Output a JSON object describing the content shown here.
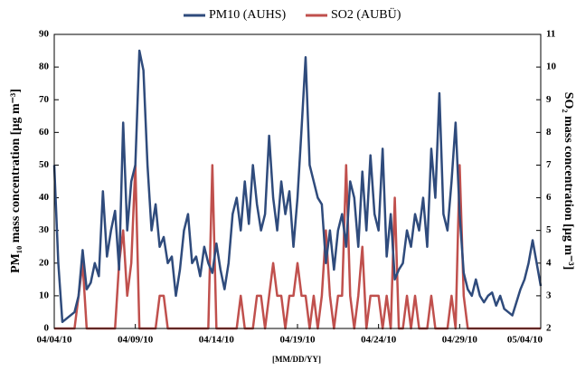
{
  "chart_data": {
    "type": "line",
    "x_label": "[MM/DD/YY]",
    "y_label": "PM₁₀ mass concentration [µg m⁻³]",
    "y2_label": "SO₂ mass concentration [µg m⁻³]",
    "xlim": [
      0,
      30
    ],
    "xticks": [
      {
        "value": 0,
        "label": "04/04/10"
      },
      {
        "value": 5,
        "label": "04/09/10"
      },
      {
        "value": 10,
        "label": "04/14/10"
      },
      {
        "value": 15,
        "label": "04/19/10"
      },
      {
        "value": 20,
        "label": "04/24/10"
      },
      {
        "value": 25,
        "label": "04/29/10"
      },
      {
        "value": 30,
        "label": "05/04/10"
      }
    ],
    "ylim": [
      0,
      90
    ],
    "yticks": [
      0,
      10,
      20,
      30,
      40,
      50,
      60,
      70,
      80,
      90
    ],
    "y2lim": [
      2,
      11
    ],
    "y2ticks": [
      2,
      3,
      4,
      5,
      6,
      7,
      8,
      9,
      10,
      11
    ],
    "x": [
      0,
      0.25,
      0.5,
      0.75,
      1,
      1.25,
      1.5,
      1.75,
      2,
      2.25,
      2.5,
      2.75,
      3,
      3.25,
      3.5,
      3.75,
      4,
      4.25,
      4.5,
      4.75,
      5,
      5.25,
      5.5,
      5.75,
      6,
      6.25,
      6.5,
      6.75,
      7,
      7.25,
      7.5,
      7.75,
      8,
      8.25,
      8.5,
      8.75,
      9,
      9.25,
      9.5,
      9.75,
      10,
      10.25,
      10.5,
      10.75,
      11,
      11.25,
      11.5,
      11.75,
      12,
      12.25,
      12.5,
      12.75,
      13,
      13.25,
      13.5,
      13.75,
      14,
      14.25,
      14.5,
      14.75,
      15,
      15.25,
      15.5,
      15.75,
      16,
      16.25,
      16.5,
      16.75,
      17,
      17.25,
      17.5,
      17.75,
      18,
      18.25,
      18.5,
      18.75,
      19,
      19.25,
      19.5,
      19.75,
      20,
      20.25,
      20.5,
      20.75,
      21,
      21.25,
      21.5,
      21.75,
      22,
      22.25,
      22.5,
      22.75,
      23,
      23.25,
      23.5,
      23.75,
      24,
      24.25,
      24.5,
      24.75,
      25,
      25.25,
      25.5,
      25.75,
      26,
      26.25,
      26.5,
      26.75,
      27,
      27.25,
      27.5,
      27.75,
      28,
      28.25,
      28.5,
      28.75,
      29,
      29.25,
      29.5,
      29.75,
      30
    ],
    "series": [
      {
        "name": "PM10 (AUHS)",
        "color": "#2f4b7c",
        "axis": "y",
        "values": [
          50,
          20,
          2,
          3,
          4,
          5,
          10,
          24,
          12,
          14,
          20,
          16,
          42,
          22,
          30,
          36,
          18,
          63,
          30,
          45,
          50,
          85,
          79,
          50,
          30,
          38,
          25,
          28,
          20,
          22,
          10,
          18,
          30,
          35,
          20,
          22,
          16,
          25,
          20,
          17,
          26,
          18,
          12,
          20,
          35,
          40,
          30,
          45,
          32,
          50,
          38,
          30,
          35,
          59,
          40,
          30,
          45,
          35,
          42,
          25,
          40,
          61,
          83,
          50,
          45,
          40,
          38,
          20,
          30,
          18,
          30,
          35,
          25,
          45,
          40,
          25,
          48,
          30,
          53,
          35,
          30,
          55,
          22,
          35,
          15,
          18,
          20,
          30,
          25,
          35,
          30,
          40,
          25,
          55,
          40,
          72,
          35,
          30,
          45,
          63,
          35,
          17,
          12,
          10,
          15,
          10,
          8,
          10,
          11,
          7,
          10,
          6,
          5,
          4,
          8,
          12,
          15,
          20,
          27,
          20,
          13
        ]
      },
      {
        "name": "SO2 (AUBÜ)",
        "color": "#c0504d",
        "axis": "y2",
        "values": [
          2,
          2,
          2,
          2,
          2,
          2,
          3,
          4,
          2,
          2,
          2,
          2,
          2,
          2,
          2,
          2,
          4,
          5,
          3,
          4,
          7,
          2,
          2,
          2,
          2,
          2,
          3,
          3,
          2,
          2,
          2,
          2,
          2,
          2,
          2,
          2,
          2,
          2,
          2,
          7,
          2,
          2,
          2,
          2,
          2,
          2,
          3,
          2,
          2,
          2,
          3,
          3,
          2,
          3,
          4,
          3,
          3,
          2,
          3,
          3,
          4,
          3,
          3,
          2,
          3,
          2,
          3,
          5,
          3,
          2,
          3,
          3,
          7,
          3,
          2,
          3,
          4.5,
          2,
          3,
          3,
          3,
          2,
          3,
          2,
          6,
          2,
          2,
          3,
          2,
          3,
          2,
          2,
          2,
          3,
          2,
          2,
          2,
          2,
          3,
          2,
          7,
          3,
          2,
          2,
          2,
          2,
          2,
          2,
          2,
          2,
          2,
          2,
          2,
          2,
          2,
          2,
          2,
          2,
          2,
          2,
          2
        ]
      }
    ]
  }
}
